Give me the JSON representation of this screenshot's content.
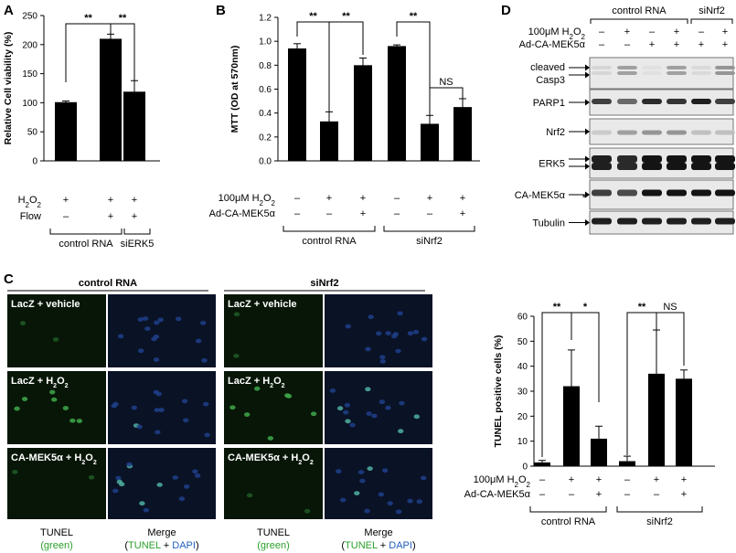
{
  "panels": {
    "A": {
      "letter": "A",
      "chart_data": {
        "type": "bar",
        "ylabel": "Relative Cell viability (%)",
        "ylim": [
          0,
          250
        ],
        "yticks": [
          0,
          50,
          100,
          150,
          200,
          250
        ],
        "values": [
          101,
          210,
          119
        ],
        "errors": [
          2,
          8,
          19
        ],
        "rows": [
          {
            "label": "H₂O₂",
            "marks": [
              "+",
              "+",
              "+"
            ]
          },
          {
            "label": "Flow",
            "marks": [
              "–",
              "+",
              "+"
            ]
          }
        ],
        "groups": [
          "control RNA",
          "siERK5"
        ],
        "significance": [
          "**",
          "**"
        ]
      }
    },
    "B": {
      "letter": "B",
      "chart_data": {
        "type": "bar",
        "ylabel": "MTT (OD at 570nm)",
        "ylim": [
          0,
          1.2
        ],
        "yticks": [
          "0.0",
          "0.2",
          "0.4",
          "0.6",
          "0.8",
          "1.0",
          "1.2"
        ],
        "values": [
          0.94,
          0.33,
          0.8,
          0.96,
          0.31,
          0.45
        ],
        "errors": [
          0.04,
          0.08,
          0.06,
          0.01,
          0.07,
          0.07
        ],
        "rows": [
          {
            "label": "100μM H₂O₂",
            "marks": [
              "–",
              "+",
              "+",
              "–",
              "+",
              "+"
            ]
          },
          {
            "label": "Ad-CA-MEK5α",
            "marks": [
              "–",
              "–",
              "+",
              "–",
              "–",
              "+"
            ]
          }
        ],
        "groups": [
          "control RNA",
          "siNrf2"
        ],
        "significance": [
          "**",
          "**",
          "**",
          "NS"
        ]
      }
    },
    "C": {
      "letter": "C",
      "group_left": "control RNA",
      "group_right": "siNrf2",
      "row_labels": [
        "LacZ + vehicle",
        "LacZ + H₂O₂",
        "CA-MEK5α + H₂O₂"
      ],
      "col_tunel": "TUNEL",
      "col_tunel_sub": "(green)",
      "col_merge": "Merge",
      "col_merge_open": "(",
      "col_merge_tunel": "TUNEL",
      "col_merge_plus": " + ",
      "col_merge_dapi": "DAPI",
      "col_merge_close": ")",
      "tunel_color": "#2ca02c",
      "dapi_color": "#1f5fbf",
      "chart_data": {
        "type": "bar",
        "ylabel": "TUNEL positive cells (%)",
        "ylim": [
          0,
          60
        ],
        "yticks": [
          0,
          10,
          20,
          30,
          40,
          50,
          60
        ],
        "values": [
          1.5,
          32,
          11,
          2,
          37,
          35
        ],
        "errors": [
          0.8,
          14.5,
          5,
          2,
          17.5,
          3.5
        ],
        "rows": [
          {
            "label": "100μM H₂O₂",
            "marks": [
              "–",
              "+",
              "+",
              "–",
              "+",
              "+"
            ]
          },
          {
            "label": "Ad-CA-MEK5α",
            "marks": [
              "–",
              "–",
              "+",
              "–",
              "–",
              "+"
            ]
          }
        ],
        "groups": [
          "control RNA",
          "siNrf2"
        ],
        "significance": [
          "**",
          "*",
          "**",
          "NS"
        ]
      }
    },
    "D": {
      "letter": "D",
      "groups": [
        "control RNA",
        "siNrf2"
      ],
      "rows": [
        {
          "label": "100μM H₂O₂",
          "marks": [
            "–",
            "+",
            "–",
            "+",
            "–",
            "+"
          ]
        },
        {
          "label": "Ad-CA-MEK5α",
          "marks": [
            "–",
            "–",
            "+",
            "+",
            "+",
            "+"
          ]
        }
      ],
      "blots": [
        {
          "label": "cleaved\nCasp3"
        },
        {
          "label": "PARP1"
        },
        {
          "label": "Nrf2"
        },
        {
          "label": "ERK5"
        },
        {
          "label": "CA-MEK5α"
        },
        {
          "label": "Tubulin"
        }
      ],
      "asterisk": "*"
    }
  }
}
